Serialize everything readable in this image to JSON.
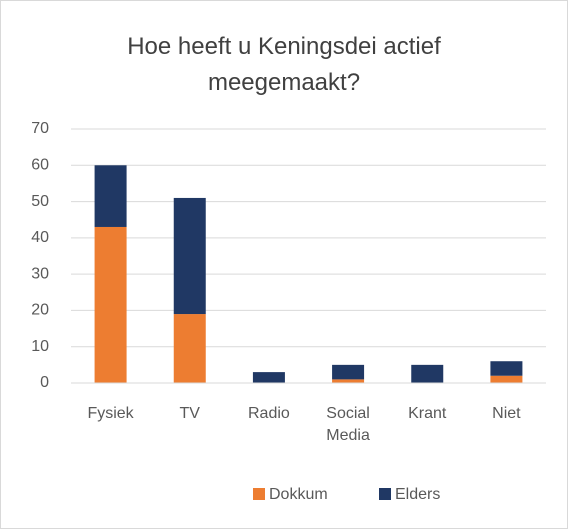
{
  "chart_data": {
    "type": "stacked_bar",
    "title": "Hoe heeft u Keningsdei actief meegemaakt?",
    "categories": [
      "Fysiek",
      "TV",
      "Radio",
      "Social Media",
      "Krant",
      "Niet"
    ],
    "series": [
      {
        "name": "Dokkum",
        "color": "#ed7d31",
        "values": [
          43,
          19,
          0,
          1,
          0,
          2
        ]
      },
      {
        "name": "Elders",
        "color": "#203864",
        "values": [
          17,
          32,
          3,
          4,
          5,
          4
        ]
      }
    ],
    "ylim": [
      0,
      70
    ],
    "yticks": [
      0,
      10,
      20,
      30,
      40,
      50,
      60,
      70
    ],
    "grid": true,
    "legend": "bottom"
  }
}
